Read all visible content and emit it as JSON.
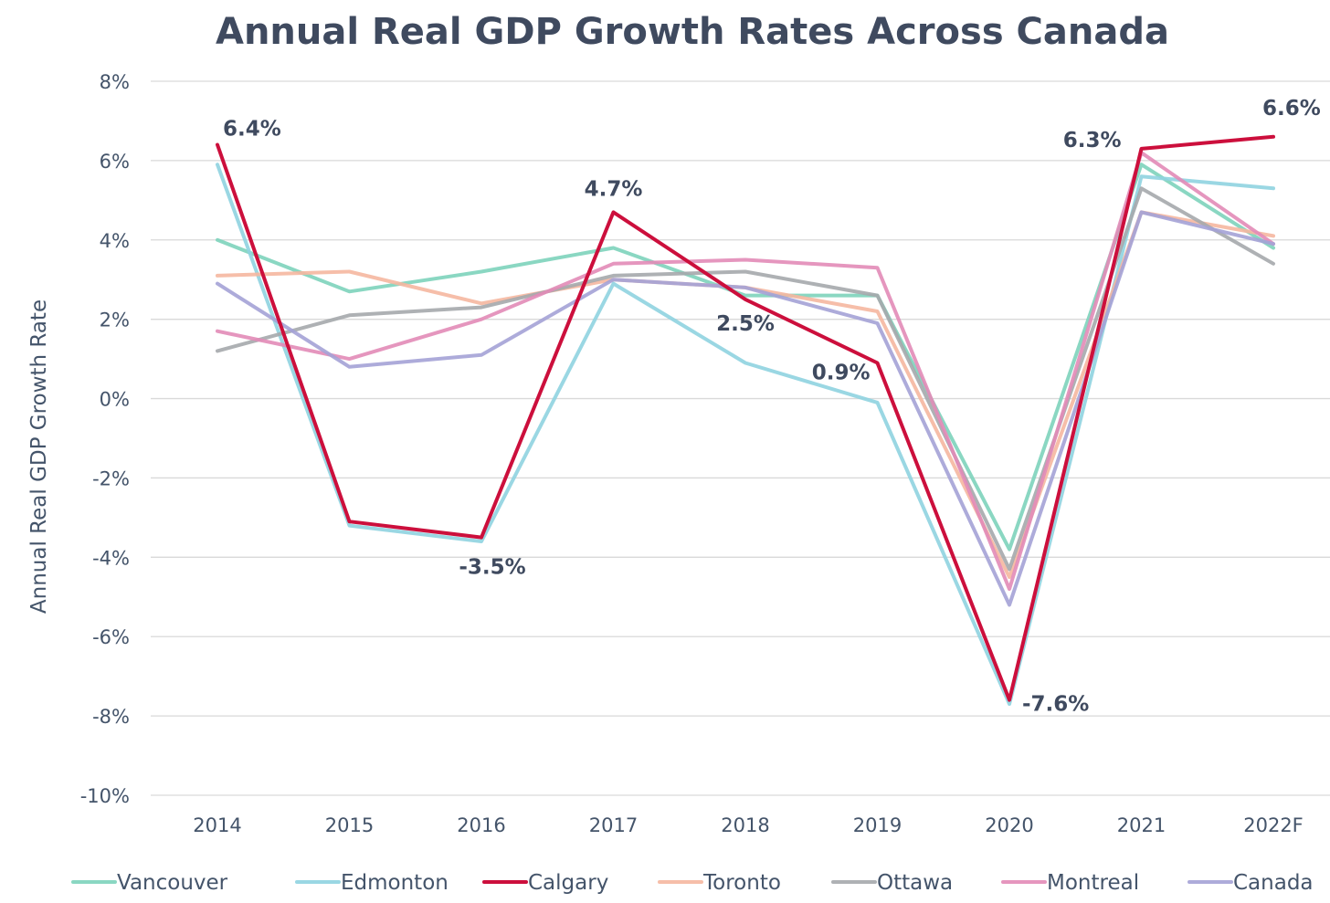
{
  "chart_data": {
    "type": "line",
    "title": "Annual Real GDP Growth Rates Across Canada",
    "xlabel": "",
    "ylabel": "Annual Real GDP Growth Rate",
    "categories": [
      "2014",
      "2015",
      "2016",
      "2017",
      "2018",
      "2019",
      "2020",
      "2021",
      "2022F"
    ],
    "ylim": [
      -10,
      8
    ],
    "yticks": [
      8,
      6,
      4,
      2,
      0,
      -2,
      -4,
      -6,
      -8,
      -10
    ],
    "ytick_labels": [
      "8%",
      "6%",
      "4%",
      "2%",
      "0%",
      "-2%",
      "-4%",
      "-6%",
      "-8%",
      "-10%"
    ],
    "grid": true,
    "legend_position": "bottom",
    "series": [
      {
        "name": "Vancouver",
        "color": "#7dd3bb",
        "opacity": 0.9,
        "values": [
          4.0,
          2.7,
          3.2,
          3.8,
          2.6,
          2.6,
          -3.8,
          5.9,
          3.8
        ]
      },
      {
        "name": "Edmonton",
        "color": "#8fd3e0",
        "opacity": 0.9,
        "values": [
          5.9,
          -3.2,
          -3.6,
          2.9,
          0.9,
          -0.1,
          -7.7,
          5.6,
          5.3
        ]
      },
      {
        "name": "Toronto",
        "color": "#f5b7a0",
        "opacity": 0.9,
        "values": [
          3.1,
          3.2,
          2.4,
          3.0,
          2.8,
          2.2,
          -4.5,
          4.7,
          4.1
        ]
      },
      {
        "name": "Ottawa",
        "color": "#a5a8ac",
        "opacity": 0.9,
        "values": [
          1.2,
          2.1,
          2.3,
          3.1,
          3.2,
          2.6,
          -4.3,
          5.3,
          3.4
        ]
      },
      {
        "name": "Montreal",
        "color": "#e28bb7",
        "opacity": 0.9,
        "values": [
          1.7,
          1.0,
          2.0,
          3.4,
          3.5,
          3.3,
          -4.8,
          6.2,
          3.9
        ]
      },
      {
        "name": "Canada",
        "color": "#a4a2d6",
        "opacity": 0.9,
        "values": [
          2.9,
          0.8,
          1.1,
          3.0,
          2.8,
          1.9,
          -5.2,
          4.7,
          3.9
        ]
      },
      {
        "name": "Calgary",
        "color": "#cc0f3c",
        "opacity": 1.0,
        "values": [
          6.4,
          -3.1,
          -3.5,
          4.7,
          2.5,
          0.9,
          -7.6,
          6.3,
          6.6
        ]
      }
    ],
    "legend_order": [
      "Vancouver",
      "Edmonton",
      "Calgary",
      "Toronto",
      "Ottawa",
      "Montreal",
      "Canada"
    ],
    "data_labels": [
      {
        "series": "Calgary",
        "index": 0,
        "text": "6.4%"
      },
      {
        "series": "Calgary",
        "index": 2,
        "text": "-3.5%"
      },
      {
        "series": "Calgary",
        "index": 3,
        "text": "4.7%"
      },
      {
        "series": "Calgary",
        "index": 4,
        "text": "2.5%"
      },
      {
        "series": "Calgary",
        "index": 5,
        "text": "0.9%"
      },
      {
        "series": "Calgary",
        "index": 6,
        "text": "-7.6%"
      },
      {
        "series": "Calgary",
        "index": 7,
        "text": "6.3%"
      },
      {
        "series": "Calgary",
        "index": 8,
        "text": "6.6%"
      }
    ]
  }
}
